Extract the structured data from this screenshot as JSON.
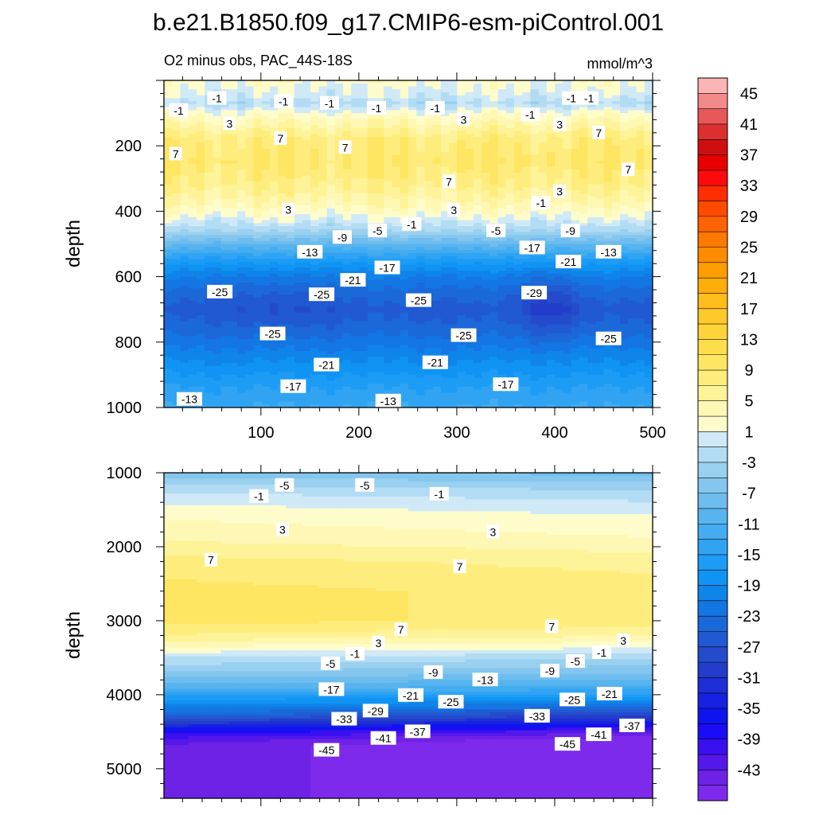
{
  "title": "b.e21.B1850.f09_g17.CMIP6-esm-piControl.001",
  "subtitle": "O2 minus obs, PAC_44S-18S",
  "units": "mmol/m^3",
  "chart_data": [
    {
      "type": "heatmap",
      "panel": "upper",
      "xlim": [
        1,
        500
      ],
      "ylim": [
        0,
        1000
      ],
      "y_reversed": true,
      "x_ticks": [
        100,
        200,
        300,
        400,
        500
      ],
      "y_ticks": [
        200,
        400,
        600,
        800,
        1000
      ],
      "ylabel": "depth",
      "profile": {
        "depth": [
          0,
          50,
          70,
          100,
          140,
          180,
          250,
          320,
          380,
          420,
          460,
          500,
          550,
          600,
          650,
          700,
          760,
          820,
          880,
          940,
          1000
        ],
        "value": [
          2,
          0,
          -2,
          2,
          5,
          8,
          9,
          7,
          4,
          1,
          -3,
          -9,
          -16,
          -21,
          -24,
          -26,
          -24,
          -21,
          -18,
          -15,
          -13
        ]
      },
      "contour_labels": [
        {
          "text": "-1",
          "x": 16,
          "y": 92
        },
        {
          "text": "-1",
          "x": 55,
          "y": 55
        },
        {
          "text": "-1",
          "x": 123,
          "y": 65
        },
        {
          "text": "-1",
          "x": 170,
          "y": 70
        },
        {
          "text": "-1",
          "x": 218,
          "y": 85
        },
        {
          "text": "-1",
          "x": 278,
          "y": 85
        },
        {
          "text": "-1",
          "x": 375,
          "y": 105
        },
        {
          "text": "-1",
          "x": 417,
          "y": 55
        },
        {
          "text": "-1",
          "x": 435,
          "y": 55
        },
        {
          "text": "3",
          "x": 68,
          "y": 132
        },
        {
          "text": "3",
          "x": 307,
          "y": 120
        },
        {
          "text": "3",
          "x": 405,
          "y": 135
        },
        {
          "text": "7",
          "x": 13,
          "y": 225
        },
        {
          "text": "7",
          "x": 120,
          "y": 178
        },
        {
          "text": "7",
          "x": 186,
          "y": 205
        },
        {
          "text": "7",
          "x": 445,
          "y": 160
        },
        {
          "text": "7",
          "x": 475,
          "y": 273
        },
        {
          "text": "7",
          "x": 292,
          "y": 310
        },
        {
          "text": "3",
          "x": 128,
          "y": 395
        },
        {
          "text": "3",
          "x": 297,
          "y": 397
        },
        {
          "text": "3",
          "x": 405,
          "y": 340
        },
        {
          "text": "-1",
          "x": 254,
          "y": 440
        },
        {
          "text": "-1",
          "x": 386,
          "y": 375
        },
        {
          "text": "-5",
          "x": 219,
          "y": 460
        },
        {
          "text": "-5",
          "x": 340,
          "y": 460
        },
        {
          "text": "-9",
          "x": 183,
          "y": 480
        },
        {
          "text": "-9",
          "x": 416,
          "y": 460
        },
        {
          "text": "-13",
          "x": 150,
          "y": 525
        },
        {
          "text": "-13",
          "x": 455,
          "y": 525
        },
        {
          "text": "-17",
          "x": 229,
          "y": 573
        },
        {
          "text": "-17",
          "x": 377,
          "y": 512
        },
        {
          "text": "-21",
          "x": 194,
          "y": 611
        },
        {
          "text": "-21",
          "x": 414,
          "y": 555
        },
        {
          "text": "-25",
          "x": 58,
          "y": 647
        },
        {
          "text": "-25",
          "x": 162,
          "y": 655
        },
        {
          "text": "-25",
          "x": 261,
          "y": 673
        },
        {
          "text": "-29",
          "x": 379,
          "y": 650
        },
        {
          "text": "-25",
          "x": 112,
          "y": 775
        },
        {
          "text": "-25",
          "x": 307,
          "y": 780
        },
        {
          "text": "-25",
          "x": 455,
          "y": 790
        },
        {
          "text": "-21",
          "x": 167,
          "y": 870
        },
        {
          "text": "-21",
          "x": 278,
          "y": 863
        },
        {
          "text": "-17",
          "x": 133,
          "y": 936
        },
        {
          "text": "-17",
          "x": 350,
          "y": 930
        },
        {
          "text": "-13",
          "x": 27,
          "y": 975
        },
        {
          "text": "-13",
          "x": 230,
          "y": 980
        }
      ]
    },
    {
      "type": "heatmap",
      "panel": "lower",
      "xlim": [
        1,
        500
      ],
      "ylim": [
        1000,
        5400
      ],
      "y_reversed": true,
      "y_ticks": [
        1000,
        2000,
        3000,
        4000,
        5000
      ],
      "ylabel": "depth",
      "profile": {
        "depth": [
          1000,
          1100,
          1250,
          1400,
          1600,
          1900,
          2200,
          2600,
          3000,
          3200,
          3400,
          3500,
          3700,
          3900,
          4100,
          4300,
          4400,
          4500,
          4600,
          4700,
          5400
        ],
        "value": [
          -7,
          -5,
          -2,
          0,
          2,
          4,
          7,
          9,
          9,
          6,
          1,
          -2,
          -6,
          -11,
          -19,
          -28,
          -34,
          -40,
          -44,
          -46,
          -46
        ]
      },
      "contour_labels": [
        {
          "text": "-5",
          "x": 124,
          "y": 1170
        },
        {
          "text": "-5",
          "x": 206,
          "y": 1170
        },
        {
          "text": "-1",
          "x": 98,
          "y": 1320
        },
        {
          "text": "-1",
          "x": 282,
          "y": 1290
        },
        {
          "text": "3",
          "x": 122,
          "y": 1770
        },
        {
          "text": "3",
          "x": 337,
          "y": 1800
        },
        {
          "text": "7",
          "x": 49,
          "y": 2180
        },
        {
          "text": "7",
          "x": 303,
          "y": 2270
        },
        {
          "text": "7",
          "x": 243,
          "y": 3120
        },
        {
          "text": "7",
          "x": 397,
          "y": 3080
        },
        {
          "text": "3",
          "x": 220,
          "y": 3300
        },
        {
          "text": "3",
          "x": 470,
          "y": 3270
        },
        {
          "text": "-1",
          "x": 196,
          "y": 3450
        },
        {
          "text": "-1",
          "x": 448,
          "y": 3430
        },
        {
          "text": "-5",
          "x": 171,
          "y": 3580
        },
        {
          "text": "-5",
          "x": 421,
          "y": 3550
        },
        {
          "text": "-9",
          "x": 276,
          "y": 3700
        },
        {
          "text": "-9",
          "x": 395,
          "y": 3680
        },
        {
          "text": "-13",
          "x": 329,
          "y": 3800
        },
        {
          "text": "-17",
          "x": 172,
          "y": 3930
        },
        {
          "text": "-21",
          "x": 253,
          "y": 4010
        },
        {
          "text": "-21",
          "x": 456,
          "y": 3990
        },
        {
          "text": "-25",
          "x": 294,
          "y": 4100
        },
        {
          "text": "-25",
          "x": 418,
          "y": 4070
        },
        {
          "text": "-29",
          "x": 217,
          "y": 4220
        },
        {
          "text": "-33",
          "x": 185,
          "y": 4330
        },
        {
          "text": "-33",
          "x": 382,
          "y": 4290
        },
        {
          "text": "-37",
          "x": 260,
          "y": 4500
        },
        {
          "text": "-37",
          "x": 479,
          "y": 4420
        },
        {
          "text": "-41",
          "x": 225,
          "y": 4590
        },
        {
          "text": "-41",
          "x": 445,
          "y": 4540
        },
        {
          "text": "-45",
          "x": 167,
          "y": 4750
        },
        {
          "text": "-45",
          "x": 413,
          "y": 4670
        }
      ]
    }
  ],
  "colorbar": {
    "labels": [
      "45",
      "41",
      "37",
      "33",
      "29",
      "25",
      "21",
      "17",
      "13",
      "9",
      "5",
      "1",
      "-3",
      "-7",
      "-11",
      "-15",
      "-19",
      "-23",
      "-27",
      "-31",
      "-35",
      "-39",
      "-43"
    ],
    "levels": [
      45,
      43,
      41,
      39,
      37,
      35,
      33,
      31,
      29,
      27,
      25,
      23,
      21,
      19,
      17,
      15,
      13,
      11,
      9,
      7,
      5,
      3,
      1,
      -1,
      -3,
      -5,
      -7,
      -9,
      -11,
      -13,
      -15,
      -17,
      -19,
      -21,
      -23,
      -25,
      -27,
      -29,
      -31,
      -33,
      -35,
      -37,
      -39,
      -41,
      -43,
      -45
    ],
    "colors": [
      "#fbb5b5",
      "#f38a8a",
      "#e85858",
      "#dc3030",
      "#cf0f0f",
      "#e80000",
      "#ff0a0a",
      "#ff2d00",
      "#ff4a00",
      "#ff6200",
      "#ff7800",
      "#ff8c00",
      "#ff9e00",
      "#ffad0a",
      "#ffbc1a",
      "#ffc92a",
      "#ffd43a",
      "#fedd4c",
      "#fee562",
      "#feed7c",
      "#fef398",
      "#fff8b4",
      "#fffccc",
      "#cfe9f7",
      "#b2dcf3",
      "#9ad0ef",
      "#84c6ee",
      "#6ebdee",
      "#58b4ee",
      "#44acf0",
      "#30a4f3",
      "#1d9cf6",
      "#1094f4",
      "#0f85ea",
      "#1476e2",
      "#1b68d9",
      "#2159d2",
      "#234bcb",
      "#233dca",
      "#1e2fd5",
      "#1621e3",
      "#0e14f0",
      "#1a0cf6",
      "#3a10f0",
      "#5518ea",
      "#6d22e6",
      "#7e2aec"
    ]
  }
}
